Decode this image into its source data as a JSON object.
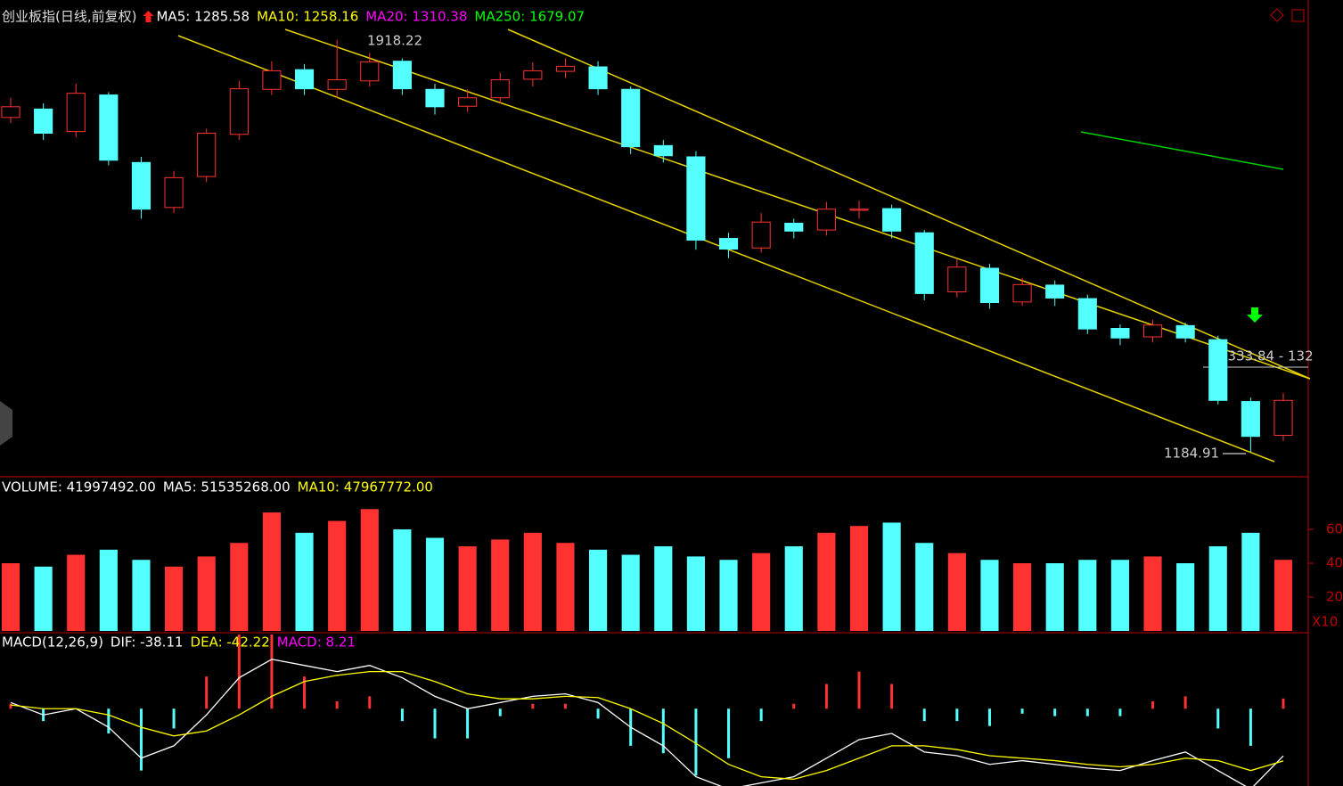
{
  "chart_data": [
    {
      "type": "candlestick",
      "title": "创业板指(日线,前复权)",
      "legend": [
        {
          "name": "MA5: 1285.58",
          "color": "#ffffff"
        },
        {
          "name": "MA10: 1258.16",
          "color": "#ffff00"
        },
        {
          "name": "MA20: 1310.38",
          "color": "#ff00ff"
        },
        {
          "name": "MA250: 1679.07",
          "color": "#00ff00"
        }
      ],
      "up_color": "#ff3232",
      "down_color": "#54ffff",
      "open": [
        1780,
        1795,
        1755,
        1820,
        1700,
        1620,
        1675,
        1750,
        1830,
        1865,
        1830,
        1845,
        1880,
        1830,
        1800,
        1815,
        1848,
        1862,
        1870,
        1830,
        1730,
        1710,
        1565,
        1548,
        1592,
        1580,
        1615,
        1618,
        1575,
        1470,
        1512,
        1452,
        1482,
        1458,
        1405,
        1390,
        1410,
        1385,
        1275,
        1215
      ],
      "high": [
        1815,
        1805,
        1840,
        1825,
        1710,
        1685,
        1760,
        1845,
        1880,
        1875,
        1918.22,
        1895,
        1885,
        1840,
        1830,
        1860,
        1878,
        1885,
        1880,
        1835,
        1740,
        1720,
        1575,
        1610,
        1600,
        1630,
        1632,
        1625,
        1580,
        1528,
        1520,
        1495,
        1490,
        1465,
        1412,
        1420,
        1415,
        1392,
        1282,
        1290
      ],
      "low": [
        1770,
        1740,
        1745,
        1695,
        1600,
        1610,
        1665,
        1740,
        1820,
        1820,
        1815,
        1835,
        1820,
        1785,
        1790,
        1805,
        1835,
        1850,
        1820,
        1715,
        1700,
        1545,
        1530,
        1540,
        1565,
        1570,
        1600,
        1565,
        1455,
        1460,
        1440,
        1445,
        1445,
        1395,
        1375,
        1380,
        1380,
        1270,
        1184.91,
        1205
      ],
      "close": [
        1799,
        1752,
        1823,
        1704,
        1617,
        1673,
        1752,
        1831,
        1863,
        1831,
        1847,
        1879,
        1831,
        1799,
        1815,
        1847,
        1863,
        1871,
        1831,
        1728,
        1712,
        1562,
        1546,
        1594,
        1578,
        1617,
        1617,
        1578,
        1467,
        1514,
        1451,
        1483,
        1459,
        1404,
        1388,
        1411,
        1388,
        1277,
        1213,
        1277
      ],
      "ylim": [
        1146,
        1973
      ],
      "annotations": [
        "1918.22",
        "1184.91",
        "1333.84 - 132"
      ]
    },
    {
      "type": "volume",
      "legend": [
        {
          "name": "VOLUME: 41997492.00",
          "color": "#ffffff"
        },
        {
          "name": "MA5: 51535268.00",
          "color": "#ffffff"
        },
        {
          "name": "MA10: 47967772.00",
          "color": "#ffff00"
        }
      ],
      "values": [
        40,
        38,
        45,
        48,
        42,
        38,
        44,
        52,
        70,
        58,
        65,
        72,
        60,
        55,
        50,
        54,
        58,
        52,
        48,
        45,
        50,
        44,
        42,
        46,
        50,
        58,
        62,
        64,
        52,
        46,
        42,
        40,
        40,
        42,
        42,
        44,
        40,
        50,
        58,
        42
      ],
      "ylim": [
        0,
        89.5
      ],
      "yticks": [
        20,
        40,
        60
      ],
      "unit_label": "X10"
    },
    {
      "type": "macd",
      "legend": [
        {
          "name": "MACD(12,26,9)",
          "color": "#ffffff"
        },
        {
          "name": "DIF: -38.11",
          "color": "#ffffff"
        },
        {
          "name": "DEA: -42.22",
          "color": "#ffff00"
        },
        {
          "name": "MACD: 8.21",
          "color": "#ff00ff"
        }
      ],
      "series": [
        {
          "name": "DIF",
          "color": "#ffffff",
          "values": [
            5,
            -5,
            0,
            -15,
            -40,
            -30,
            -5,
            25,
            40,
            35,
            30,
            35,
            25,
            10,
            0,
            5,
            10,
            12,
            5,
            -15,
            -30,
            -55,
            -65,
            -60,
            -55,
            -40,
            -25,
            -20,
            -35,
            -38,
            -45,
            -42,
            -45,
            -48,
            -50,
            -42,
            -35,
            -50,
            -65,
            -38.11
          ]
        },
        {
          "name": "DEA",
          "color": "#ffff00",
          "values": [
            3,
            0,
            0,
            -5,
            -15,
            -22,
            -18,
            -5,
            10,
            22,
            27,
            30,
            30,
            22,
            12,
            8,
            8,
            10,
            9,
            0,
            -12,
            -28,
            -45,
            -55,
            -57,
            -50,
            -40,
            -30,
            -30,
            -33,
            -38,
            -40,
            -42,
            -45,
            -47,
            -45,
            -40,
            -42,
            -50,
            -42.22
          ]
        }
      ],
      "histogram": [
        4,
        -10,
        0,
        -20,
        -50,
        -16,
        26,
        60,
        60,
        26,
        6,
        10,
        -10,
        -24,
        -24,
        -6,
        4,
        4,
        -8,
        -30,
        -36,
        -54,
        -40,
        -10,
        4,
        20,
        30,
        20,
        -10,
        -10,
        -14,
        -4,
        -6,
        -6,
        -6,
        6,
        10,
        -16,
        -30,
        8.21
      ],
      "ylim": [
        -62.5,
        60
      ]
    }
  ]
}
